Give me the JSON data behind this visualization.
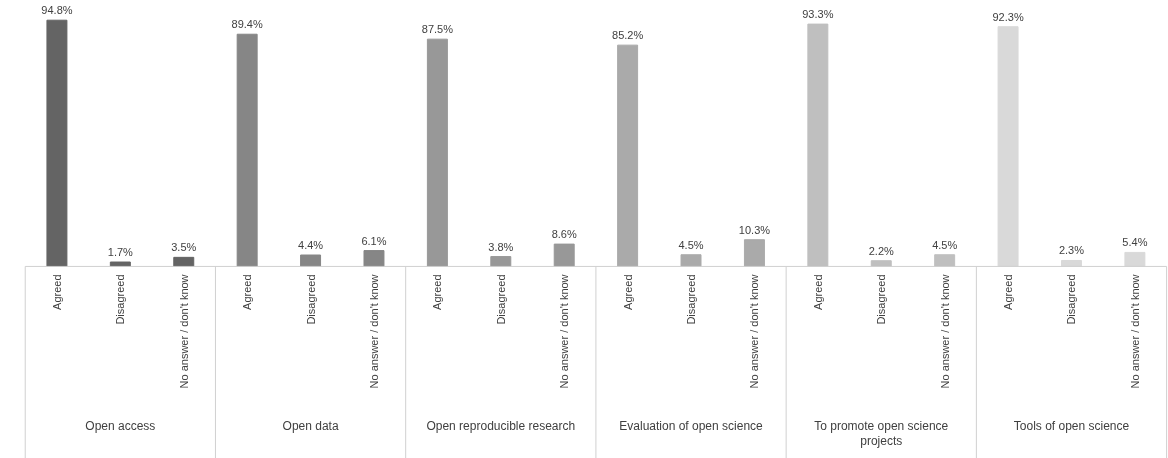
{
  "chart_data": {
    "type": "bar",
    "categories": [
      "Open access",
      "Open data",
      "Open reproducible research",
      "Evaluation of open science",
      "To promote open science projects",
      "Tools of open science"
    ],
    "series": [
      {
        "name": "Agreed",
        "colors": [
          "#646464",
          "#868686",
          "#989898",
          "#aaaaaa",
          "#bfbfbf",
          "#d9d9d9"
        ],
        "values": [
          94.8,
          89.4,
          87.5,
          85.2,
          93.3,
          92.3
        ],
        "value_labels": [
          "94.8%",
          "89.4%",
          "87.5%",
          "85.2%",
          "93.3%",
          "92.3%"
        ]
      },
      {
        "name": "Disagreed",
        "colors": [
          "#646464",
          "#868686",
          "#989898",
          "#aaaaaa",
          "#bfbfbf",
          "#d9d9d9"
        ],
        "values": [
          1.7,
          4.4,
          3.8,
          4.5,
          2.2,
          2.3
        ],
        "value_labels": [
          "1.7%",
          "4.4%",
          "3.8%",
          "4.5%",
          "2.2%",
          "2.3%"
        ]
      },
      {
        "name": "No answer / don't know",
        "colors": [
          "#646464",
          "#868686",
          "#989898",
          "#aaaaaa",
          "#bfbfbf",
          "#d9d9d9"
        ],
        "values": [
          3.5,
          6.1,
          8.6,
          10.3,
          4.5,
          5.4
        ],
        "value_labels": [
          "3.5%",
          "6.1%",
          "8.6%",
          "10.3%",
          "4.5%",
          "5.4%"
        ]
      }
    ]
  }
}
